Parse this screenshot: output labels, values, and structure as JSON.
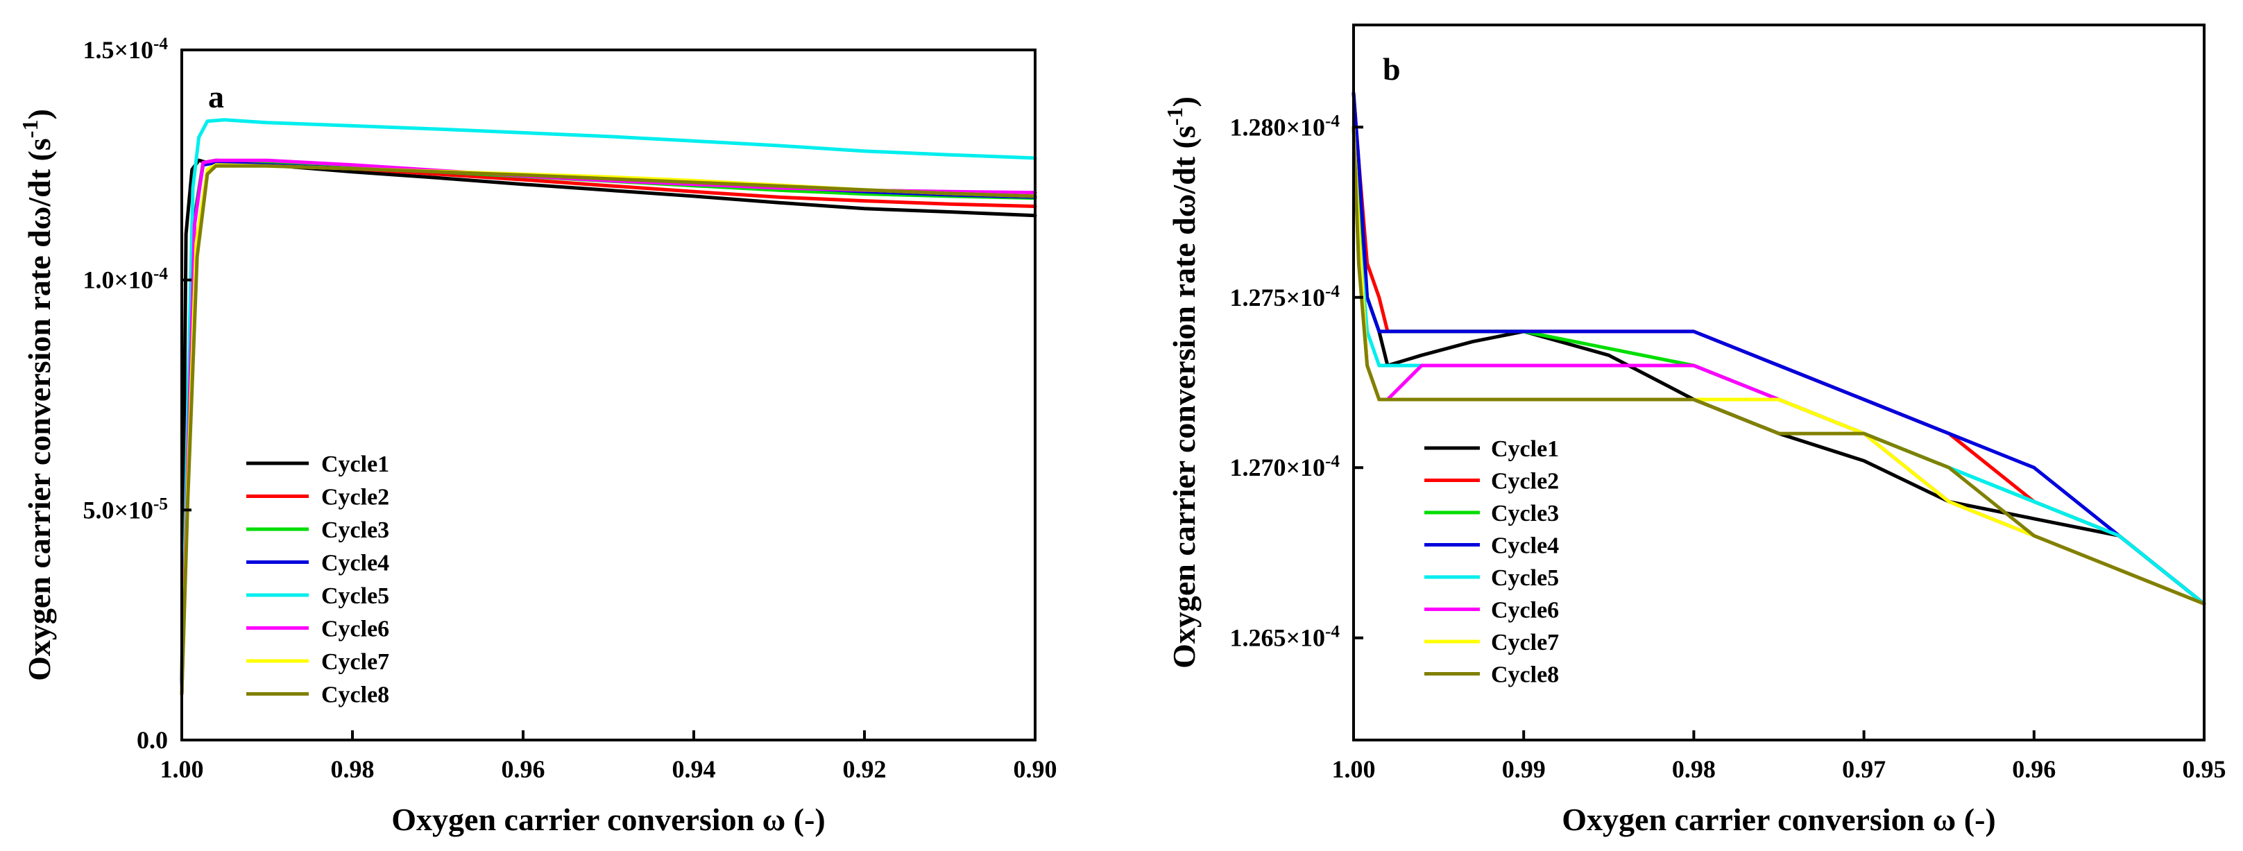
{
  "chart_data": [
    {
      "type": "line",
      "panel_label": "a",
      "xlabel": "Oxygen carrier conversion ω (-)",
      "ylabel_main": "Oxygen carrier conversion rate dω/dt (s",
      "ylabel_sup": "-1",
      "ylabel_close": ")",
      "xlim": [
        1.0,
        0.9
      ],
      "ylim": [
        0.0,
        0.00015
      ],
      "xticks": [
        {
          "value": 1.0,
          "label": "1.00"
        },
        {
          "value": 0.98,
          "label": "0.98"
        },
        {
          "value": 0.96,
          "label": "0.96"
        },
        {
          "value": 0.94,
          "label": "0.94"
        },
        {
          "value": 0.92,
          "label": "0.92"
        },
        {
          "value": 0.9,
          "label": "0.90"
        }
      ],
      "yticks": [
        {
          "value": 0.0,
          "label": "0.0"
        },
        {
          "value": 5e-05,
          "label": "5.0×10",
          "sup": "-5"
        },
        {
          "value": 0.0001,
          "label": "1.0×10",
          "sup": "-4"
        },
        {
          "value": 0.00015,
          "label": "1.5×10",
          "sup": "-4"
        }
      ],
      "legend_position": "bottom-left",
      "series": [
        {
          "name": "Cycle1",
          "color": "#000000",
          "x": [
            1.0,
            0.9995,
            0.9988,
            0.998,
            0.997,
            0.99,
            0.98,
            0.97,
            0.96,
            0.95,
            0.94,
            0.93,
            0.92,
            0.91,
            0.9
          ],
          "y": [
            1.2e-05,
            0.00011,
            0.000124,
            0.000126,
            0.0001255,
            0.000125,
            0.0001235,
            0.0001222,
            0.0001208,
            0.0001195,
            0.0001182,
            0.0001168,
            0.0001155,
            0.0001148,
            0.000114
          ]
        },
        {
          "name": "Cycle2",
          "color": "#ff0000",
          "x": [
            1.0,
            0.9993,
            0.9985,
            0.9975,
            0.996,
            0.99,
            0.98,
            0.97,
            0.96,
            0.95,
            0.94,
            0.93,
            0.92,
            0.91,
            0.9
          ],
          "y": [
            1e-05,
            6e-05,
            0.000113,
            0.0001255,
            0.000126,
            0.0001255,
            0.0001242,
            0.000123,
            0.0001218,
            0.0001205,
            0.0001192,
            0.000118,
            0.0001172,
            0.0001165,
            0.000116
          ]
        },
        {
          "name": "Cycle3",
          "color": "#00dd00",
          "x": [
            1.0,
            0.9993,
            0.9985,
            0.9975,
            0.996,
            0.99,
            0.98,
            0.97,
            0.96,
            0.95,
            0.94,
            0.93,
            0.92,
            0.91,
            0.9
          ],
          "y": [
            1e-05,
            6.2e-05,
            0.000114,
            0.0001255,
            0.000126,
            0.0001255,
            0.0001245,
            0.0001235,
            0.0001225,
            0.0001215,
            0.0001205,
            0.0001195,
            0.0001187,
            0.0001182,
            0.0001178
          ]
        },
        {
          "name": "Cycle4",
          "color": "#0000dd",
          "x": [
            1.0,
            0.9993,
            0.9985,
            0.9975,
            0.996,
            0.99,
            0.98,
            0.97,
            0.96,
            0.95,
            0.94,
            0.93,
            0.92,
            0.91,
            0.9
          ],
          "y": [
            1e-05,
            6.1e-05,
            0.000113,
            0.000125,
            0.0001255,
            0.000125,
            0.0001242,
            0.0001235,
            0.0001228,
            0.0001222,
            0.0001212,
            0.0001202,
            0.0001192,
            0.0001185,
            0.000118
          ]
        },
        {
          "name": "Cycle5",
          "color": "#00eeee",
          "x": [
            1.0,
            0.9993,
            0.9987,
            0.998,
            0.997,
            0.995,
            0.99,
            0.98,
            0.97,
            0.96,
            0.95,
            0.94,
            0.93,
            0.92,
            0.91,
            0.9
          ],
          "y": [
            1e-05,
            7.2e-05,
            0.00012,
            0.000131,
            0.0001345,
            0.0001348,
            0.0001342,
            0.0001335,
            0.0001328,
            0.000132,
            0.0001312,
            0.0001302,
            0.0001292,
            0.000128,
            0.0001272,
            0.0001265
          ]
        },
        {
          "name": "Cycle6",
          "color": "#ff00ff",
          "x": [
            1.0,
            0.9993,
            0.9985,
            0.9975,
            0.996,
            0.99,
            0.98,
            0.97,
            0.96,
            0.95,
            0.94,
            0.93,
            0.92,
            0.91,
            0.9
          ],
          "y": [
            1e-05,
            6e-05,
            0.000112,
            0.0001255,
            0.000126,
            0.000126,
            0.000125,
            0.0001238,
            0.0001226,
            0.0001216,
            0.0001208,
            0.00012,
            0.0001195,
            0.0001192,
            0.000119
          ]
        },
        {
          "name": "Cycle7",
          "color": "#ffff00",
          "x": [
            1.0,
            0.9993,
            0.9983,
            0.997,
            0.996,
            0.99,
            0.98,
            0.97,
            0.96,
            0.95,
            0.94,
            0.93,
            0.92,
            0.91,
            0.9
          ],
          "y": [
            1e-05,
            5.5e-05,
            0.000108,
            0.000124,
            0.000125,
            0.0001248,
            0.0001242,
            0.0001236,
            0.000123,
            0.0001224,
            0.0001216,
            0.0001206,
            0.0001196,
            0.0001188,
            0.0001182
          ]
        },
        {
          "name": "Cycle8",
          "color": "#808000",
          "x": [
            1.0,
            0.9993,
            0.9982,
            0.997,
            0.996,
            0.99,
            0.98,
            0.97,
            0.96,
            0.95,
            0.94,
            0.93,
            0.92,
            0.91,
            0.9
          ],
          "y": [
            1e-05,
            5.2e-05,
            0.000105,
            0.000123,
            0.0001248,
            0.0001248,
            0.0001242,
            0.0001235,
            0.0001228,
            0.000122,
            0.0001212,
            0.0001204,
            0.0001196,
            0.0001188,
            0.0001182
          ]
        }
      ]
    },
    {
      "type": "line",
      "panel_label": "b",
      "xlabel": "Oxygen carrier conversion ω (-)",
      "ylabel_main": "Oxygen carrier conversion rate dω/dt (s",
      "ylabel_sup": "-1",
      "ylabel_close": ")",
      "xlim": [
        1.0,
        0.95
      ],
      "ylim": [
        0.0001262,
        0.0001283
      ],
      "xticks": [
        {
          "value": 1.0,
          "label": "1.00"
        },
        {
          "value": 0.99,
          "label": "0.99"
        },
        {
          "value": 0.98,
          "label": "0.98"
        },
        {
          "value": 0.97,
          "label": "0.97"
        },
        {
          "value": 0.96,
          "label": "0.96"
        },
        {
          "value": 0.95,
          "label": "0.95"
        }
      ],
      "yticks": [
        {
          "value": 0.0001265,
          "label": "1.265×10",
          "sup": "-4"
        },
        {
          "value": 0.000127,
          "label": "1.270×10",
          "sup": "-4"
        },
        {
          "value": 0.0001275,
          "label": "1.275×10",
          "sup": "-4"
        },
        {
          "value": 0.000128,
          "label": "1.280×10",
          "sup": "-4"
        }
      ],
      "legend_position": "bottom-left",
      "series": [
        {
          "name": "Cycle1",
          "color": "#000000",
          "x": [
            1.0,
            0.9997,
            0.9992,
            0.9985,
            0.998,
            0.996,
            0.993,
            0.99,
            0.985,
            0.98,
            0.975,
            0.97,
            0.965,
            0.96,
            0.955,
            0.95
          ],
          "y": [
            0.000128,
            0.0001278,
            0.0001275,
            0.0001274,
            0.0001273,
            0.00012733,
            0.00012737,
            0.0001274,
            0.00012733,
            0.0001272,
            0.0001271,
            0.00012702,
            0.0001269,
            0.00012685,
            0.0001268,
            0.0001266
          ]
        },
        {
          "name": "Cycle2",
          "color": "#ff0000",
          "x": [
            1.0,
            0.9997,
            0.9992,
            0.9985,
            0.998,
            0.996,
            0.99,
            0.985,
            0.98,
            0.975,
            0.97,
            0.965,
            0.96,
            0.955,
            0.95
          ],
          "y": [
            0.0001281,
            0.0001279,
            0.0001276,
            0.0001275,
            0.0001274,
            0.0001274,
            0.0001274,
            0.0001274,
            0.0001274,
            0.0001273,
            0.0001272,
            0.0001271,
            0.0001269,
            0.0001268,
            0.0001266
          ]
        },
        {
          "name": "Cycle3",
          "color": "#00dd00",
          "x": [
            1.0,
            0.9997,
            0.9992,
            0.9985,
            0.998,
            0.996,
            0.99,
            0.98,
            0.975,
            0.97,
            0.965,
            0.96,
            0.955,
            0.95
          ],
          "y": [
            0.000128,
            0.0001278,
            0.0001275,
            0.0001274,
            0.0001274,
            0.0001274,
            0.0001274,
            0.0001273,
            0.0001272,
            0.0001271,
            0.000127,
            0.0001269,
            0.0001268,
            0.0001266
          ]
        },
        {
          "name": "Cycle4",
          "color": "#0000dd",
          "x": [
            1.0,
            0.9997,
            0.9992,
            0.9985,
            0.998,
            0.996,
            0.99,
            0.98,
            0.975,
            0.97,
            0.965,
            0.96,
            0.955,
            0.95
          ],
          "y": [
            0.0001281,
            0.0001279,
            0.0001275,
            0.0001274,
            0.0001274,
            0.0001274,
            0.0001274,
            0.0001274,
            0.0001273,
            0.0001272,
            0.0001271,
            0.000127,
            0.0001268,
            0.0001266
          ]
        },
        {
          "name": "Cycle5",
          "color": "#00eeee",
          "x": [
            1.0,
            0.9997,
            0.9992,
            0.9985,
            0.998,
            0.996,
            0.99,
            0.98,
            0.975,
            0.97,
            0.965,
            0.96,
            0.955,
            0.95
          ],
          "y": [
            0.000128,
            0.0001277,
            0.0001274,
            0.0001273,
            0.0001273,
            0.0001273,
            0.0001273,
            0.0001273,
            0.0001272,
            0.0001271,
            0.000127,
            0.0001269,
            0.0001268,
            0.0001266
          ]
        },
        {
          "name": "Cycle6",
          "color": "#ff00ff",
          "x": [
            1.0,
            0.9997,
            0.9992,
            0.9985,
            0.998,
            0.996,
            0.99,
            0.98,
            0.975,
            0.97,
            0.965,
            0.96,
            0.955,
            0.95
          ],
          "y": [
            0.000128,
            0.0001277,
            0.0001273,
            0.0001272,
            0.0001272,
            0.0001273,
            0.0001273,
            0.0001273,
            0.0001272,
            0.0001271,
            0.0001269,
            0.0001268,
            0.0001267,
            0.0001266
          ]
        },
        {
          "name": "Cycle7",
          "color": "#ffff00",
          "x": [
            1.0,
            0.9997,
            0.9992,
            0.9985,
            0.998,
            0.996,
            0.99,
            0.98,
            0.975,
            0.97,
            0.965,
            0.96,
            0.955,
            0.95
          ],
          "y": [
            0.000128,
            0.0001277,
            0.0001273,
            0.0001272,
            0.0001272,
            0.0001272,
            0.0001272,
            0.0001272,
            0.0001272,
            0.0001271,
            0.0001269,
            0.0001268,
            0.0001267,
            0.0001266
          ]
        },
        {
          "name": "Cycle8",
          "color": "#808000",
          "x": [
            1.0,
            0.9997,
            0.9992,
            0.9985,
            0.998,
            0.996,
            0.99,
            0.98,
            0.975,
            0.97,
            0.965,
            0.96,
            0.955,
            0.95
          ],
          "y": [
            0.000128,
            0.0001276,
            0.0001273,
            0.0001272,
            0.0001272,
            0.0001272,
            0.0001272,
            0.0001272,
            0.0001271,
            0.0001271,
            0.000127,
            0.0001268,
            0.0001267,
            0.0001266
          ]
        }
      ]
    }
  ]
}
